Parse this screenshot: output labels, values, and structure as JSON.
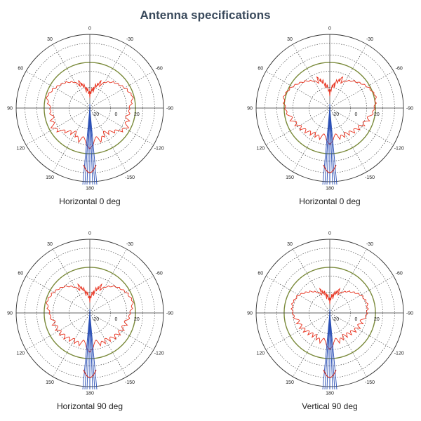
{
  "page": {
    "title": "Antenna specifications"
  },
  "colors": {
    "pattern": "#e8301c",
    "reference_circle": "#7a8a3a",
    "beam": "#2a4fb5",
    "beam_tip": "#c8322a",
    "grid": "#333333"
  },
  "chart_data": [
    {
      "type": "polar",
      "caption": "Horizontal 0 deg",
      "angle_tick_labels": [
        "0",
        "-30",
        "-60",
        "-90",
        "-120",
        "-150",
        "180",
        "150",
        "120",
        "90",
        "60",
        "30"
      ],
      "radial_tick_labels": [
        "-20",
        "0",
        "20"
      ],
      "pattern": {
        "angles_deg": [
          0,
          10,
          20,
          30,
          45,
          60,
          75,
          90,
          105,
          120,
          135,
          150,
          160,
          170,
          180
        ],
        "levels": [
          14,
          22,
          30,
          42,
          50,
          56,
          62,
          55,
          56,
          60,
          48,
          42,
          50,
          44,
          58
        ]
      },
      "beam": {
        "half_width_deg": 3,
        "lobes": 3
      },
      "reference_level": 20
    },
    {
      "type": "polar",
      "caption": "Horizontal 0 deg",
      "angle_tick_labels": [
        "0",
        "-30",
        "-60",
        "-90",
        "-120",
        "-150",
        "180",
        "150",
        "120",
        "90",
        "60",
        "30"
      ],
      "radial_tick_labels": [
        "-20",
        "0",
        "20"
      ],
      "pattern": {
        "angles_deg": [
          0,
          10,
          20,
          30,
          45,
          60,
          75,
          90,
          105,
          120,
          135,
          150,
          160,
          170,
          180
        ],
        "levels": [
          16,
          28,
          36,
          44,
          52,
          60,
          66,
          62,
          58,
          52,
          48,
          44,
          46,
          40,
          52
        ]
      },
      "beam": {
        "half_width_deg": 3,
        "lobes": 3
      },
      "reference_level": 20
    },
    {
      "type": "polar",
      "caption": "Horizontal 90 deg",
      "angle_tick_labels": [
        "0",
        "-30",
        "-60",
        "-90",
        "-120",
        "-150",
        "180",
        "150",
        "120",
        "90",
        "60",
        "30"
      ],
      "radial_tick_labels": [
        "-20",
        "0",
        "20"
      ],
      "pattern": {
        "angles_deg": [
          0,
          10,
          20,
          30,
          45,
          60,
          75,
          90,
          105,
          120,
          135,
          150,
          160,
          170,
          180
        ],
        "levels": [
          14,
          24,
          32,
          42,
          52,
          58,
          62,
          56,
          54,
          52,
          50,
          46,
          48,
          42,
          56
        ]
      },
      "beam": {
        "half_width_deg": 3,
        "lobes": 3
      },
      "reference_level": 20
    },
    {
      "type": "polar",
      "caption": "Vertical 90 deg",
      "angle_tick_labels": [
        "0",
        "-30",
        "-60",
        "-90",
        "-120",
        "-150",
        "180",
        "150",
        "120",
        "90",
        "60",
        "30"
      ],
      "radial_tick_labels": [
        "-20",
        "0",
        "20"
      ],
      "pattern": {
        "angles_deg": [
          0,
          10,
          20,
          30,
          45,
          60,
          75,
          90,
          105,
          120,
          135,
          150,
          160,
          170,
          180
        ],
        "levels": [
          12,
          20,
          26,
          34,
          42,
          50,
          54,
          52,
          48,
          46,
          42,
          40,
          44,
          40,
          52
        ]
      },
      "beam": {
        "half_width_deg": 3,
        "lobes": 3
      },
      "reference_level": 20
    }
  ]
}
